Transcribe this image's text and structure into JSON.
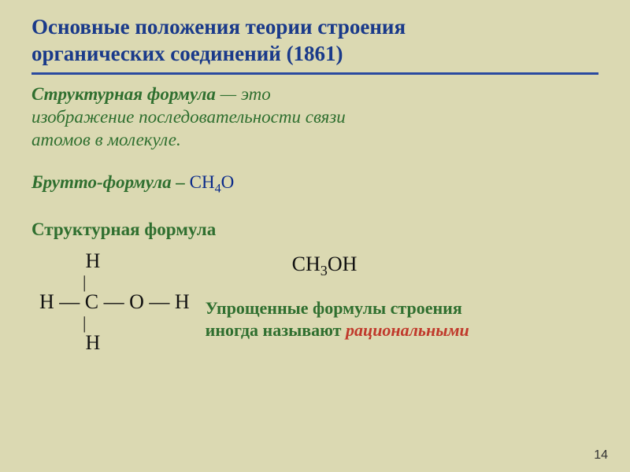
{
  "colors": {
    "background": "#dbd9b2",
    "title": "#1a3a8a",
    "rule": "#2a4aa0",
    "definition": "#2f6f2f",
    "body": "#1a1a1a",
    "formula": "#0a2a8a",
    "note": "#2f6f2f",
    "rational": "#c0392b"
  },
  "title": {
    "line1": "Основные положения теории строения",
    "line2": "органических соединений (1861)",
    "fontsize": 27,
    "underline_thickness": 3
  },
  "definition": {
    "lead": "Структурная формула",
    "rest1": " — это",
    "rest2": "изображение последовательности связи",
    "rest3": "атомов в молекуле.",
    "fontsize": 23
  },
  "brutto": {
    "label": "Брутто-формула – ",
    "formula_html": "CH<sub>4</sub>O",
    "fontsize": 23
  },
  "section_label": "Структурная формула",
  "structure": {
    "rows": [
      "         H",
      "          |",
      "H — C — O — H",
      "          |",
      "         H"
    ],
    "fontsize": 26
  },
  "simplified": {
    "formula_html": "CH<sub>3</sub>OH",
    "fontsize": 26
  },
  "note": {
    "line1": "Упрощенные формулы строения",
    "line2a": "иногда называют ",
    "line2b": "рациональными",
    "fontsize": 22
  },
  "page_number": "14"
}
